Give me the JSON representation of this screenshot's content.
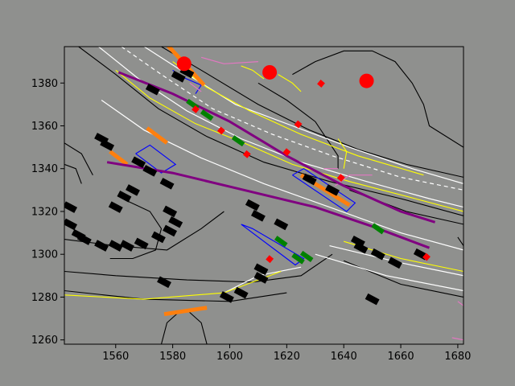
{
  "colors": {
    "figure_bg": "#8f908e",
    "axes_bg": "#8f908e",
    "lane_boundary": "#000000",
    "lane_line": "#ffffff",
    "lane_center": "#ffff00",
    "crosswalk": "#0000ff",
    "stop_line": "#ff7f0e",
    "route": "#800080",
    "vehicle": "#000000",
    "agent": "#008000",
    "traffic_light": "#ff0000",
    "walkway": "#e377c2"
  },
  "chart_data": {
    "type": "scatter",
    "title": "",
    "xlabel": "",
    "ylabel": "",
    "xlim": [
      1542,
      1682
    ],
    "ylim": [
      1258,
      1397
    ],
    "xticks": [
      1560,
      1580,
      1600,
      1620,
      1640,
      1660,
      1680
    ],
    "yticks": [
      1260,
      1280,
      1300,
      1320,
      1340,
      1360,
      1380
    ],
    "grid": false,
    "lane_boundaries": [
      [
        [
          1547,
          1397
        ],
        [
          1560,
          1384
        ],
        [
          1575,
          1368
        ],
        [
          1592,
          1355
        ],
        [
          1612,
          1343
        ],
        [
          1635,
          1334
        ],
        [
          1660,
          1326
        ],
        [
          1682,
          1318
        ]
      ],
      [
        [
          1576,
          1397
        ],
        [
          1590,
          1386
        ],
        [
          1610,
          1370
        ],
        [
          1628,
          1358
        ],
        [
          1645,
          1349
        ],
        [
          1662,
          1342
        ],
        [
          1682,
          1336
        ]
      ],
      [
        [
          1542,
          1292
        ],
        [
          1560,
          1290
        ],
        [
          1585,
          1288
        ],
        [
          1608,
          1287
        ],
        [
          1625,
          1290
        ],
        [
          1636,
          1300
        ]
      ],
      [
        [
          1542,
          1283
        ],
        [
          1570,
          1279
        ],
        [
          1600,
          1278
        ],
        [
          1620,
          1282
        ]
      ],
      [
        [
          1576,
          1258
        ],
        [
          1578,
          1268
        ],
        [
          1583,
          1274
        ]
      ],
      [
        [
          1592,
          1258
        ],
        [
          1590,
          1268
        ],
        [
          1585,
          1274
        ]
      ],
      [
        [
          1640,
          1297
        ],
        [
          1660,
          1286
        ],
        [
          1682,
          1280
        ]
      ],
      [
        [
          1542,
          1352
        ],
        [
          1548,
          1347
        ],
        [
          1552,
          1337
        ]
      ],
      [
        [
          1542,
          1342
        ],
        [
          1546,
          1340
        ],
        [
          1548,
          1333
        ]
      ],
      [
        [
          1564,
          1325
        ],
        [
          1572,
          1320
        ],
        [
          1576,
          1312
        ],
        [
          1574,
          1302
        ],
        [
          1566,
          1298
        ],
        [
          1558,
          1298
        ]
      ],
      [
        [
          1542,
          1307
        ],
        [
          1560,
          1304
        ],
        [
          1578,
          1302
        ],
        [
          1590,
          1312
        ],
        [
          1598,
          1320
        ]
      ],
      [
        [
          1622,
          1384
        ],
        [
          1630,
          1390
        ],
        [
          1640,
          1395
        ],
        [
          1650,
          1395
        ],
        [
          1658,
          1390
        ],
        [
          1664,
          1380
        ],
        [
          1668,
          1370
        ],
        [
          1670,
          1360
        ],
        [
          1682,
          1350
        ]
      ],
      [
        [
          1610,
          1380
        ],
        [
          1620,
          1372
        ],
        [
          1630,
          1362
        ],
        [
          1635,
          1352
        ],
        [
          1638,
          1346
        ],
        [
          1638,
          1340
        ]
      ],
      [
        [
          1680,
          1308
        ],
        [
          1682,
          1304
        ]
      ],
      [
        [
          1642,
          1330
        ],
        [
          1650,
          1326
        ],
        [
          1662,
          1320
        ],
        [
          1682,
          1314
        ]
      ]
    ],
    "lane_lines": [
      [
        [
          1554,
          1397
        ],
        [
          1568,
          1382
        ],
        [
          1585,
          1367
        ],
        [
          1604,
          1354
        ],
        [
          1625,
          1343
        ],
        [
          1648,
          1334
        ],
        [
          1670,
          1326
        ],
        [
          1682,
          1322
        ]
      ],
      [
        [
          1562,
          1397
        ],
        [
          1576,
          1384
        ],
        [
          1594,
          1368
        ],
        [
          1615,
          1356
        ],
        [
          1636,
          1346
        ],
        [
          1660,
          1336
        ],
        [
          1682,
          1330
        ]
      ],
      [
        [
          1570,
          1397
        ],
        [
          1584,
          1385
        ],
        [
          1602,
          1370
        ],
        [
          1622,
          1360
        ],
        [
          1642,
          1350
        ],
        [
          1664,
          1340
        ],
        [
          1682,
          1333
        ]
      ],
      [
        [
          1555,
          1372
        ],
        [
          1570,
          1358
        ],
        [
          1590,
          1345
        ],
        [
          1612,
          1333
        ],
        [
          1635,
          1322
        ],
        [
          1660,
          1310
        ],
        [
          1682,
          1302
        ]
      ],
      [
        [
          1635,
          1304
        ],
        [
          1660,
          1296
        ],
        [
          1682,
          1290
        ]
      ],
      [
        [
          1598,
          1282
        ],
        [
          1610,
          1290
        ],
        [
          1625,
          1294
        ]
      ],
      [
        [
          1630,
          1300
        ],
        [
          1655,
          1290
        ],
        [
          1682,
          1283
        ]
      ]
    ],
    "lane_centers": [
      [
        [
          1560,
          1386
        ],
        [
          1572,
          1373
        ],
        [
          1588,
          1361
        ],
        [
          1605,
          1352
        ],
        [
          1622,
          1342
        ],
        [
          1642,
          1334
        ],
        [
          1665,
          1326
        ],
        [
          1682,
          1320
        ]
      ],
      [
        [
          1580,
          1390
        ],
        [
          1592,
          1378
        ],
        [
          1607,
          1367
        ],
        [
          1625,
          1356
        ],
        [
          1645,
          1346
        ],
        [
          1668,
          1337
        ]
      ],
      [
        [
          1542,
          1281
        ],
        [
          1570,
          1279
        ],
        [
          1598,
          1282
        ],
        [
          1618,
          1292
        ]
      ],
      [
        [
          1640,
          1306
        ],
        [
          1660,
          1298
        ],
        [
          1682,
          1292
        ]
      ],
      [
        [
          1638,
          1354
        ],
        [
          1641,
          1348
        ],
        [
          1640,
          1340
        ]
      ],
      [
        [
          1617,
          1384
        ],
        [
          1622,
          1380
        ],
        [
          1625,
          1376
        ]
      ],
      [
        [
          1604,
          1388
        ],
        [
          1608,
          1386
        ],
        [
          1612,
          1382
        ]
      ]
    ],
    "crosswalks": [
      [
        [
          1567,
          1347
        ],
        [
          1572,
          1351
        ],
        [
          1581,
          1342
        ],
        [
          1576,
          1338
        ],
        [
          1567,
          1347
        ]
      ],
      [
        [
          1622,
          1337
        ],
        [
          1626,
          1340
        ],
        [
          1644,
          1324
        ],
        [
          1641,
          1320
        ],
        [
          1622,
          1337
        ]
      ],
      [
        [
          1604,
          1314
        ],
        [
          1608,
          1312
        ],
        [
          1626,
          1298
        ],
        [
          1623,
          1295
        ],
        [
          1604,
          1314
        ]
      ],
      [
        [
          1580,
          1386
        ],
        [
          1583,
          1383
        ],
        [
          1590,
          1379
        ],
        [
          1588,
          1375
        ]
      ]
    ],
    "stop_lines": [
      [
        [
          1578,
          1398
        ],
        [
          1591,
          1379
        ]
      ],
      [
        [
          1571,
          1359
        ],
        [
          1578,
          1352
        ]
      ],
      [
        [
          1558,
          1348
        ],
        [
          1564,
          1342
        ]
      ],
      [
        [
          1625,
          1337
        ],
        [
          1642,
          1323
        ]
      ],
      [
        [
          1577,
          1272
        ],
        [
          1592,
          1275
        ]
      ]
    ],
    "route": [
      [
        [
          1561,
          1385
        ],
        [
          1580,
          1375
        ],
        [
          1600,
          1362
        ],
        [
          1620,
          1346
        ],
        [
          1640,
          1332
        ],
        [
          1660,
          1320
        ],
        [
          1672,
          1315
        ]
      ],
      [
        [
          1557,
          1343
        ],
        [
          1580,
          1338
        ],
        [
          1605,
          1330
        ],
        [
          1630,
          1322
        ],
        [
          1650,
          1313
        ],
        [
          1670,
          1303
        ]
      ]
    ],
    "vehicles": [
      [
        1582,
        1383
      ],
      [
        1585,
        1385
      ],
      [
        1573,
        1377
      ],
      [
        1555,
        1354
      ],
      [
        1557,
        1351
      ],
      [
        1568,
        1343
      ],
      [
        1572,
        1339
      ],
      [
        1578,
        1333
      ],
      [
        1566,
        1330
      ],
      [
        1563,
        1327
      ],
      [
        1560,
        1322
      ],
      [
        1579,
        1320
      ],
      [
        1581,
        1315
      ],
      [
        1579,
        1311
      ],
      [
        1575,
        1308
      ],
      [
        1569,
        1305
      ],
      [
        1564,
        1304
      ],
      [
        1560,
        1304
      ],
      [
        1555,
        1304
      ],
      [
        1547,
        1309
      ],
      [
        1549,
        1307
      ],
      [
        1544,
        1314
      ],
      [
        1544,
        1322
      ],
      [
        1608,
        1323
      ],
      [
        1628,
        1335
      ],
      [
        1636,
        1330
      ],
      [
        1646,
        1303
      ],
      [
        1652,
        1300
      ],
      [
        1658,
        1296
      ],
      [
        1667,
        1300
      ],
      [
        1611,
        1293
      ],
      [
        1611,
        1289
      ],
      [
        1577,
        1287
      ],
      [
        1599,
        1280
      ],
      [
        1604,
        1282
      ],
      [
        1650,
        1279
      ],
      [
        1610,
        1318
      ],
      [
        1618,
        1314
      ],
      [
        1645,
        1306
      ]
    ],
    "agents": [
      [
        1587,
        1370
      ],
      [
        1592,
        1365
      ],
      [
        1603,
        1353
      ],
      [
        1618,
        1306
      ],
      [
        1624,
        1298
      ],
      [
        1627,
        1299
      ],
      [
        1652,
        1312
      ]
    ],
    "traffic_lights": [
      [
        1584,
        1389
      ],
      [
        1614,
        1385
      ],
      [
        1648,
        1381
      ]
    ],
    "red_markers": [
      [
        1588,
        1368
      ],
      [
        1597,
        1358
      ],
      [
        1606,
        1347
      ],
      [
        1620,
        1348
      ],
      [
        1614,
        1298
      ],
      [
        1639,
        1336
      ],
      [
        1669,
        1299
      ],
      [
        1624,
        1361
      ],
      [
        1632,
        1380
      ]
    ],
    "walkways": [
      [
        [
          1590,
          1392
        ],
        [
          1598,
          1389
        ],
        [
          1610,
          1390
        ]
      ],
      [
        [
          1586,
          1380
        ],
        [
          1590,
          1376
        ]
      ],
      [
        [
          1637,
          1332
        ],
        [
          1642,
          1337
        ],
        [
          1650,
          1337
        ]
      ],
      [
        [
          1633,
          1340
        ],
        [
          1638,
          1340
        ]
      ],
      [
        [
          1680,
          1278
        ],
        [
          1682,
          1276
        ]
      ],
      [
        [
          1678,
          1261
        ],
        [
          1682,
          1260
        ]
      ]
    ]
  }
}
